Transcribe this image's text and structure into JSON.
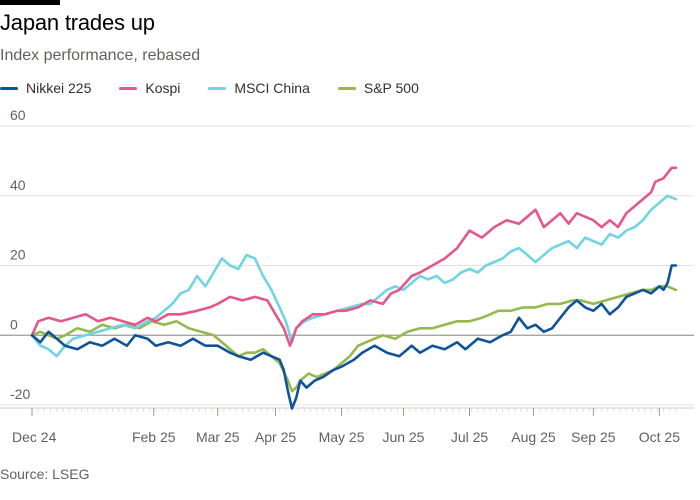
{
  "header": {
    "title": "Japan trades up",
    "subtitle": "Index performance, rebased"
  },
  "source": "Source: LSEG",
  "colors": {
    "Nikkei 225": "#0f5499",
    "Kospi": "#e5578a",
    "MSCI China": "#6fd4e4",
    "S&P 500": "#96b94c"
  },
  "chart_data": {
    "type": "line",
    "title": "Japan trades up",
    "subtitle": "Index performance, rebased",
    "xlabel": "",
    "ylabel": "",
    "ylim": [
      -20,
      60
    ],
    "yticks": [
      -20,
      0,
      20,
      40,
      60
    ],
    "x_ticks": [
      {
        "label": "Dec 24",
        "day": 0
      },
      {
        "label": "Feb 25",
        "day": 59
      },
      {
        "label": "Mar 25",
        "day": 90
      },
      {
        "label": "Apr 25",
        "day": 118
      },
      {
        "label": "May 25",
        "day": 150
      },
      {
        "label": "Jun 25",
        "day": 180
      },
      {
        "label": "Jul 25",
        "day": 212
      },
      {
        "label": "Aug 25",
        "day": 243
      },
      {
        "label": "Sep 25",
        "day": 272
      },
      {
        "label": "Oct 25",
        "day": 304
      }
    ],
    "x_range": [
      0,
      314
    ],
    "grid": true,
    "legend_position": "top-left",
    "series": [
      {
        "name": "Nikkei 225",
        "points": [
          [
            0,
            0
          ],
          [
            4,
            -2
          ],
          [
            8,
            1
          ],
          [
            12,
            -1
          ],
          [
            16,
            -3
          ],
          [
            22,
            -4
          ],
          [
            28,
            -2
          ],
          [
            34,
            -3
          ],
          [
            40,
            -1
          ],
          [
            46,
            -3
          ],
          [
            50,
            0
          ],
          [
            56,
            -1
          ],
          [
            60,
            -3
          ],
          [
            66,
            -2
          ],
          [
            72,
            -3
          ],
          [
            78,
            -1
          ],
          [
            84,
            -3
          ],
          [
            90,
            -3
          ],
          [
            96,
            -5
          ],
          [
            100,
            -6
          ],
          [
            106,
            -7
          ],
          [
            112,
            -5
          ],
          [
            116,
            -6
          ],
          [
            120,
            -7
          ],
          [
            122,
            -10
          ],
          [
            124,
            -16
          ],
          [
            126,
            -21
          ],
          [
            128,
            -18
          ],
          [
            130,
            -13
          ],
          [
            133,
            -15
          ],
          [
            137,
            -13
          ],
          [
            141,
            -12
          ],
          [
            146,
            -10
          ],
          [
            150,
            -9
          ],
          [
            156,
            -7
          ],
          [
            160,
            -5
          ],
          [
            166,
            -3
          ],
          [
            172,
            -5
          ],
          [
            178,
            -6
          ],
          [
            184,
            -3
          ],
          [
            188,
            -5
          ],
          [
            194,
            -3
          ],
          [
            200,
            -4
          ],
          [
            206,
            -2
          ],
          [
            210,
            -4
          ],
          [
            216,
            -1
          ],
          [
            222,
            -2
          ],
          [
            228,
            0
          ],
          [
            232,
            1
          ],
          [
            236,
            5
          ],
          [
            240,
            2
          ],
          [
            244,
            3
          ],
          [
            248,
            1
          ],
          [
            252,
            2
          ],
          [
            256,
            5
          ],
          [
            260,
            8
          ],
          [
            264,
            10
          ],
          [
            268,
            8
          ],
          [
            272,
            7
          ],
          [
            276,
            9
          ],
          [
            280,
            6
          ],
          [
            284,
            8
          ],
          [
            288,
            11
          ],
          [
            292,
            12
          ],
          [
            296,
            13
          ],
          [
            300,
            12
          ],
          [
            304,
            14
          ],
          [
            306,
            13
          ],
          [
            308,
            15
          ],
          [
            310,
            20
          ],
          [
            312,
            20
          ]
        ]
      },
      {
        "name": "Kospi",
        "points": [
          [
            0,
            0
          ],
          [
            3,
            4
          ],
          [
            8,
            5
          ],
          [
            14,
            4
          ],
          [
            20,
            5
          ],
          [
            26,
            6
          ],
          [
            32,
            4
          ],
          [
            38,
            5
          ],
          [
            44,
            4
          ],
          [
            50,
            3
          ],
          [
            56,
            5
          ],
          [
            60,
            4
          ],
          [
            66,
            6
          ],
          [
            72,
            6
          ],
          [
            80,
            7
          ],
          [
            86,
            8
          ],
          [
            90,
            9
          ],
          [
            96,
            11
          ],
          [
            102,
            10
          ],
          [
            108,
            11
          ],
          [
            114,
            10
          ],
          [
            118,
            6
          ],
          [
            122,
            2
          ],
          [
            125,
            -3
          ],
          [
            128,
            2
          ],
          [
            131,
            4
          ],
          [
            136,
            6
          ],
          [
            142,
            6
          ],
          [
            148,
            7
          ],
          [
            152,
            7
          ],
          [
            158,
            8
          ],
          [
            164,
            10
          ],
          [
            170,
            9
          ],
          [
            174,
            12
          ],
          [
            178,
            13
          ],
          [
            184,
            17
          ],
          [
            188,
            18
          ],
          [
            194,
            20
          ],
          [
            200,
            22
          ],
          [
            206,
            25
          ],
          [
            212,
            30
          ],
          [
            218,
            28
          ],
          [
            224,
            31
          ],
          [
            230,
            33
          ],
          [
            236,
            32
          ],
          [
            240,
            34
          ],
          [
            244,
            36
          ],
          [
            248,
            31
          ],
          [
            252,
            33
          ],
          [
            256,
            35
          ],
          [
            260,
            32
          ],
          [
            264,
            35
          ],
          [
            268,
            34
          ],
          [
            272,
            33
          ],
          [
            276,
            31
          ],
          [
            280,
            33
          ],
          [
            284,
            31
          ],
          [
            288,
            35
          ],
          [
            292,
            37
          ],
          [
            296,
            39
          ],
          [
            300,
            41
          ],
          [
            302,
            44
          ],
          [
            306,
            45
          ],
          [
            310,
            48
          ],
          [
            312,
            48
          ]
        ]
      },
      {
        "name": "MSCI China",
        "points": [
          [
            0,
            0
          ],
          [
            4,
            -3
          ],
          [
            8,
            -4
          ],
          [
            12,
            -6
          ],
          [
            16,
            -3
          ],
          [
            20,
            -1
          ],
          [
            26,
            0
          ],
          [
            32,
            1
          ],
          [
            38,
            2
          ],
          [
            44,
            3
          ],
          [
            50,
            2
          ],
          [
            56,
            4
          ],
          [
            60,
            5
          ],
          [
            64,
            7
          ],
          [
            68,
            9
          ],
          [
            72,
            12
          ],
          [
            76,
            13
          ],
          [
            80,
            17
          ],
          [
            84,
            14
          ],
          [
            88,
            18
          ],
          [
            92,
            22
          ],
          [
            96,
            20
          ],
          [
            100,
            19
          ],
          [
            104,
            23
          ],
          [
            108,
            22
          ],
          [
            112,
            17
          ],
          [
            116,
            13
          ],
          [
            120,
            8
          ],
          [
            123,
            4
          ],
          [
            126,
            -2
          ],
          [
            128,
            2
          ],
          [
            132,
            4
          ],
          [
            136,
            5
          ],
          [
            142,
            6
          ],
          [
            148,
            7
          ],
          [
            154,
            8
          ],
          [
            160,
            9
          ],
          [
            164,
            9
          ],
          [
            168,
            11
          ],
          [
            172,
            13
          ],
          [
            176,
            14
          ],
          [
            180,
            13
          ],
          [
            184,
            15
          ],
          [
            188,
            17
          ],
          [
            192,
            16
          ],
          [
            196,
            17
          ],
          [
            200,
            15
          ],
          [
            204,
            16
          ],
          [
            208,
            18
          ],
          [
            212,
            19
          ],
          [
            216,
            18
          ],
          [
            220,
            20
          ],
          [
            224,
            21
          ],
          [
            228,
            22
          ],
          [
            232,
            24
          ],
          [
            236,
            25
          ],
          [
            240,
            23
          ],
          [
            244,
            21
          ],
          [
            248,
            23
          ],
          [
            252,
            25
          ],
          [
            256,
            26
          ],
          [
            260,
            27
          ],
          [
            264,
            25
          ],
          [
            268,
            28
          ],
          [
            272,
            27
          ],
          [
            276,
            26
          ],
          [
            280,
            29
          ],
          [
            284,
            28
          ],
          [
            288,
            30
          ],
          [
            292,
            31
          ],
          [
            296,
            33
          ],
          [
            300,
            36
          ],
          [
            304,
            38
          ],
          [
            308,
            40
          ],
          [
            312,
            39
          ]
        ]
      },
      {
        "name": "S&P 500",
        "points": [
          [
            0,
            0
          ],
          [
            4,
            1
          ],
          [
            8,
            0
          ],
          [
            12,
            -1
          ],
          [
            16,
            0
          ],
          [
            22,
            2
          ],
          [
            28,
            1
          ],
          [
            34,
            3
          ],
          [
            40,
            2
          ],
          [
            46,
            3
          ],
          [
            52,
            2
          ],
          [
            58,
            4
          ],
          [
            64,
            3
          ],
          [
            70,
            4
          ],
          [
            76,
            2
          ],
          [
            82,
            1
          ],
          [
            88,
            0
          ],
          [
            92,
            -2
          ],
          [
            96,
            -4
          ],
          [
            100,
            -6
          ],
          [
            104,
            -5
          ],
          [
            108,
            -5
          ],
          [
            112,
            -4
          ],
          [
            116,
            -6
          ],
          [
            120,
            -8
          ],
          [
            124,
            -13
          ],
          [
            126,
            -16
          ],
          [
            128,
            -15
          ],
          [
            130,
            -13
          ],
          [
            134,
            -11
          ],
          [
            138,
            -12
          ],
          [
            142,
            -11
          ],
          [
            146,
            -10
          ],
          [
            150,
            -8
          ],
          [
            154,
            -6
          ],
          [
            158,
            -3
          ],
          [
            162,
            -2
          ],
          [
            166,
            -1
          ],
          [
            170,
            0
          ],
          [
            176,
            -1
          ],
          [
            182,
            1
          ],
          [
            188,
            2
          ],
          [
            194,
            2
          ],
          [
            200,
            3
          ],
          [
            206,
            4
          ],
          [
            212,
            4
          ],
          [
            218,
            5
          ],
          [
            222,
            6
          ],
          [
            226,
            7
          ],
          [
            232,
            7
          ],
          [
            238,
            8
          ],
          [
            244,
            8
          ],
          [
            250,
            9
          ],
          [
            256,
            9
          ],
          [
            262,
            10
          ],
          [
            266,
            10
          ],
          [
            272,
            9
          ],
          [
            278,
            10
          ],
          [
            284,
            11
          ],
          [
            290,
            12
          ],
          [
            296,
            13
          ],
          [
            300,
            13
          ],
          [
            304,
            14
          ],
          [
            308,
            14
          ],
          [
            312,
            13
          ]
        ]
      }
    ]
  }
}
